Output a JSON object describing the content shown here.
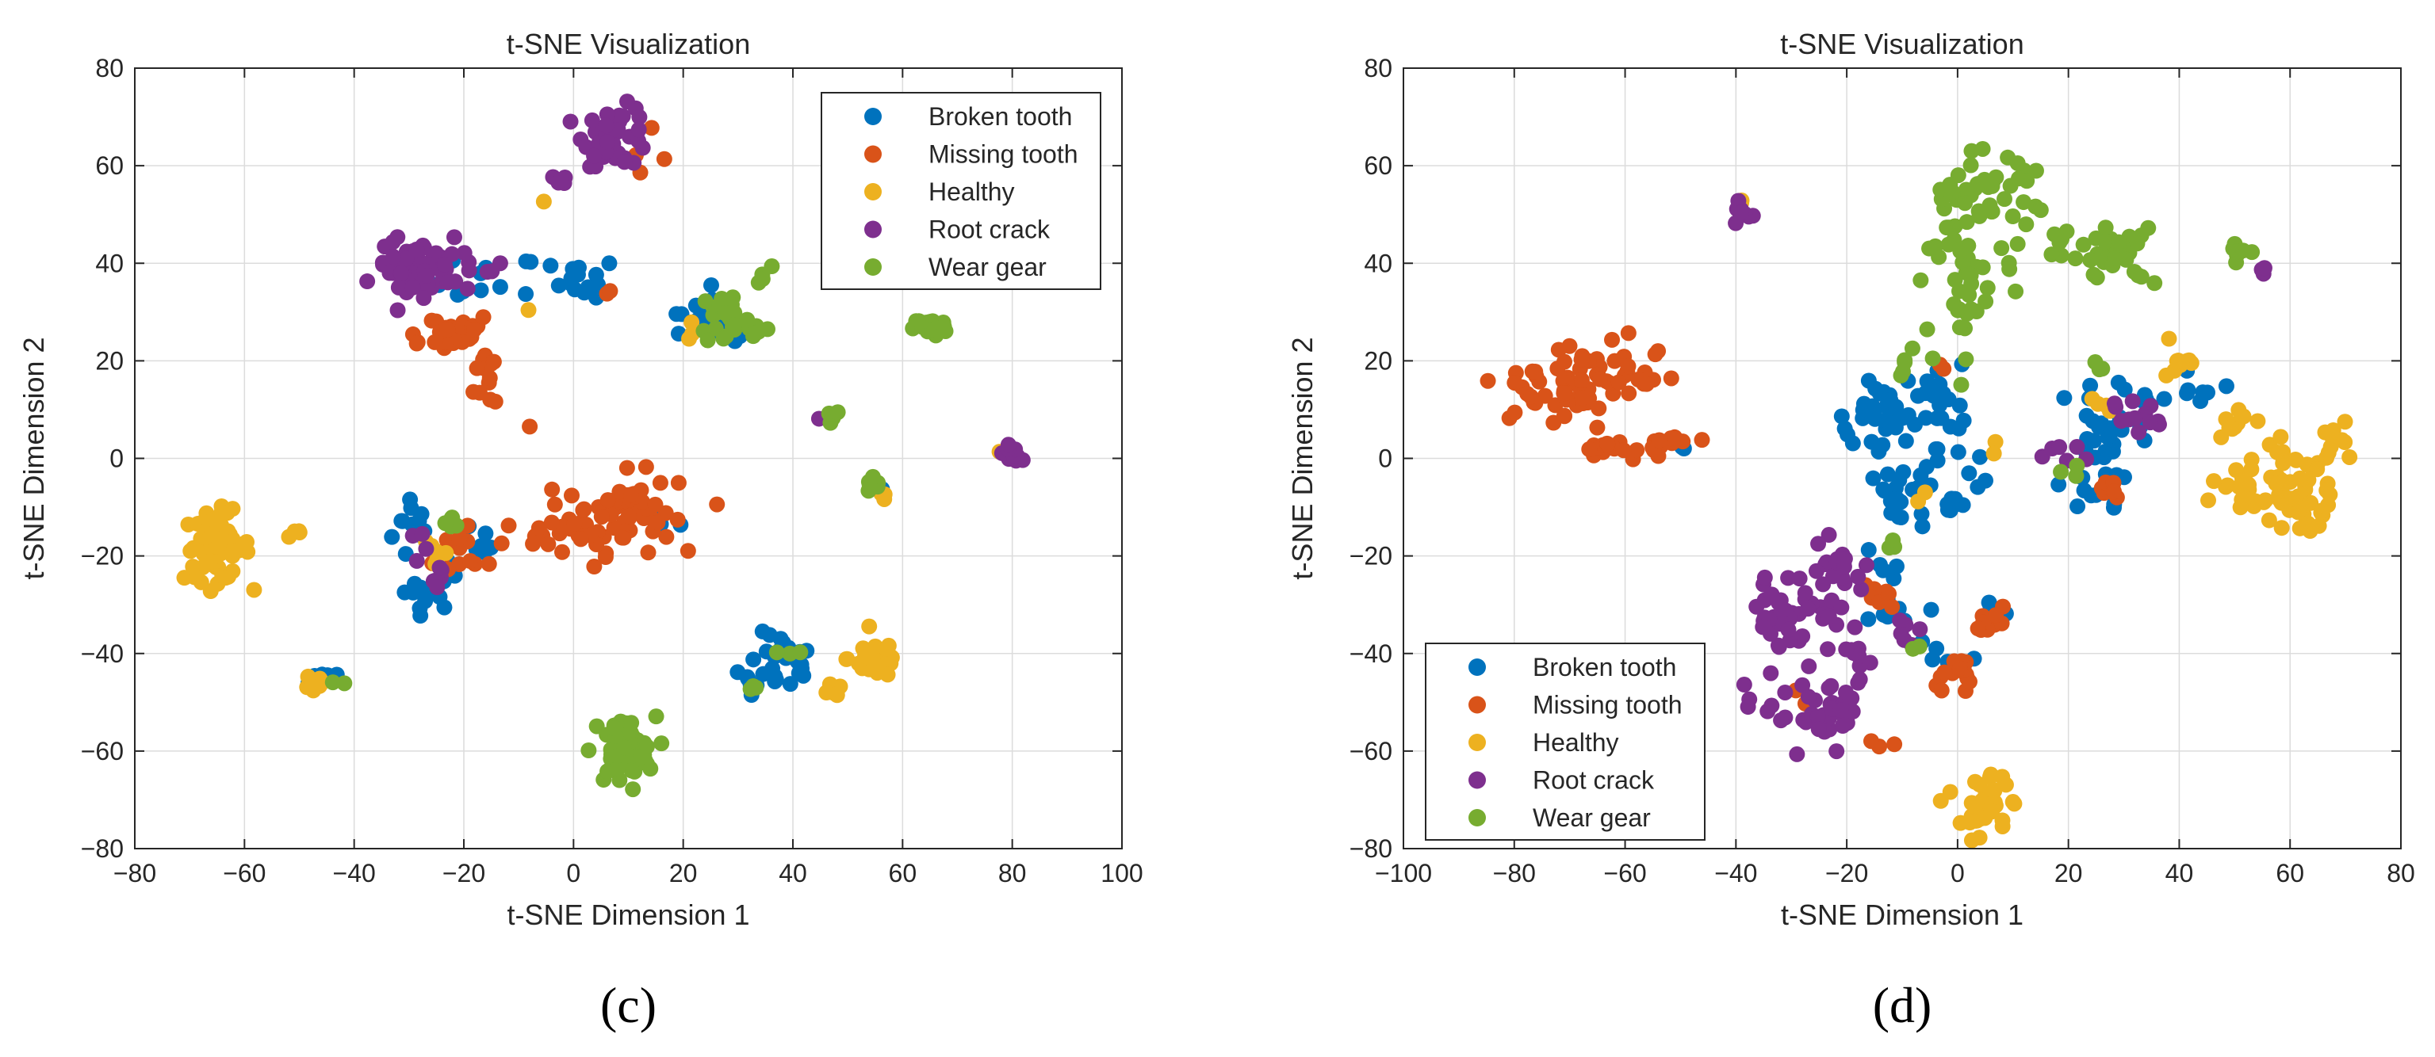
{
  "colors": {
    "broken_tooth": "#0072BD",
    "missing_tooth": "#D95319",
    "healthy": "#EDB120",
    "root_crack": "#7E2F8E",
    "wear_gear": "#77AC30",
    "grid": "#dcdcdc",
    "axis": "#262626"
  },
  "chart_data": [
    {
      "id": "c",
      "type": "scatter",
      "caption": "(c)",
      "title": "t-SNE Visualization",
      "xlabel": "t-SNE Dimension 1",
      "ylabel": "t-SNE Dimension 2",
      "xlim": [
        -80,
        100
      ],
      "ylim": [
        -80,
        80
      ],
      "xticks": [
        -80,
        -60,
        -40,
        -20,
        0,
        20,
        40,
        60,
        80,
        100
      ],
      "yticks": [
        -80,
        -60,
        -40,
        -20,
        0,
        20,
        40,
        60,
        80
      ],
      "grid": true,
      "legend_position": "top-right",
      "series": [
        {
          "name": "Broken tooth",
          "color_key": "broken_tooth",
          "clusters": [
            {
              "cx": -29,
              "cy": -14,
              "sx": 2,
              "sy": 4,
              "n": 12
            },
            {
              "cx": -27,
              "cy": -27,
              "sx": 3,
              "sy": 2,
              "n": 12
            },
            {
              "cx": -18,
              "cy": -20,
              "sx": 3,
              "sy": 3,
              "n": 10
            },
            {
              "cx": -16,
              "cy": 36,
              "sx": 5,
              "sy": 3,
              "n": 12
            },
            {
              "cx": 2,
              "cy": 37,
              "sx": 3,
              "sy": 2,
              "n": 14
            },
            {
              "cx": 22,
              "cy": 28,
              "sx": 3,
              "sy": 2,
              "n": 10
            },
            {
              "cx": 27,
              "cy": 28,
              "sx": 3,
              "sy": 3,
              "n": 12
            },
            {
              "cx": 38,
              "cy": -42,
              "sx": 3,
              "sy": 3,
              "n": 25
            },
            {
              "cx": 33,
              "cy": -46,
              "sx": 2,
              "sy": 2,
              "n": 6
            },
            {
              "cx": -46,
              "cy": -44,
              "sx": 1.5,
              "sy": 1.5,
              "n": 5
            },
            {
              "cx": 55,
              "cy": -6,
              "sx": 1,
              "sy": 1,
              "n": 3
            },
            {
              "cx": 18,
              "cy": -14,
              "sx": 1.5,
              "sy": 2,
              "n": 3
            }
          ]
        },
        {
          "name": "Missing tooth",
          "color_key": "missing_tooth",
          "clusters": [
            {
              "cx": -24,
              "cy": 26,
              "sx": 5,
              "sy": 2,
              "n": 26
            },
            {
              "cx": -15,
              "cy": 17,
              "sx": 1.5,
              "sy": 4,
              "n": 12
            },
            {
              "cx": 10,
              "cy": -11,
              "sx": 4,
              "sy": 4,
              "n": 40
            },
            {
              "cx": 2,
              "cy": -13,
              "sx": 3,
              "sy": 3,
              "n": 14
            },
            {
              "cx": -7,
              "cy": -16,
              "sx": 3,
              "sy": 2,
              "n": 10
            },
            {
              "cx": -20,
              "cy": -19,
              "sx": 4,
              "sy": 3,
              "n": 16
            },
            {
              "cx": 14,
              "cy": 65,
              "sx": 3,
              "sy": 3,
              "n": 5
            },
            {
              "cx": -8,
              "cy": 7,
              "sx": 0.5,
              "sy": 0.5,
              "n": 1
            },
            {
              "cx": 5,
              "cy": 34,
              "sx": 1,
              "sy": 1,
              "n": 2
            },
            {
              "cx": 12,
              "cy": -12,
              "sx": 8,
              "sy": 3,
              "n": 14
            }
          ]
        },
        {
          "name": "Healthy",
          "color_key": "healthy",
          "clusters": [
            {
              "cx": -65,
              "cy": -18,
              "sx": 3,
              "sy": 3.5,
              "n": 70
            },
            {
              "cx": -51,
              "cy": -16,
              "sx": 1,
              "sy": 1,
              "n": 4
            },
            {
              "cx": -47,
              "cy": -46,
              "sx": 1,
              "sy": 1.5,
              "n": 10
            },
            {
              "cx": 55,
              "cy": -41,
              "sx": 2.5,
              "sy": 2,
              "n": 32
            },
            {
              "cx": 47,
              "cy": -48,
              "sx": 1,
              "sy": 0.8,
              "n": 7
            },
            {
              "cx": -25,
              "cy": -20,
              "sx": 2,
              "sy": 2,
              "n": 6
            },
            {
              "cx": -6,
              "cy": 52,
              "sx": 0.5,
              "sy": 0.5,
              "n": 1
            },
            {
              "cx": -9,
              "cy": 30,
              "sx": 0.5,
              "sy": 0.5,
              "n": 1
            },
            {
              "cx": 78,
              "cy": 1,
              "sx": 0.5,
              "sy": 0.5,
              "n": 1
            },
            {
              "cx": 56,
              "cy": -8,
              "sx": 1,
              "sy": 1,
              "n": 3
            },
            {
              "cx": 22,
              "cy": 26,
              "sx": 1,
              "sy": 1,
              "n": 3
            }
          ]
        },
        {
          "name": "Root crack",
          "color_key": "root_crack",
          "clusters": [
            {
              "cx": -31,
              "cy": 39,
              "sx": 2.5,
              "sy": 3,
              "n": 30
            },
            {
              "cx": -23,
              "cy": 38,
              "sx": 4,
              "sy": 3,
              "n": 30
            },
            {
              "cx": 8,
              "cy": 66,
              "sx": 3,
              "sy": 3,
              "n": 45
            },
            {
              "cx": -3,
              "cy": 57,
              "sx": 1,
              "sy": 1,
              "n": 6
            },
            {
              "cx": -25,
              "cy": -24,
              "sx": 2,
              "sy": 1,
              "n": 6
            },
            {
              "cx": -28,
              "cy": -17,
              "sx": 1,
              "sy": 1,
              "n": 4
            },
            {
              "cx": 80,
              "cy": 1,
              "sx": 0.8,
              "sy": 0.8,
              "n": 14
            },
            {
              "cx": 45,
              "cy": 8,
              "sx": 0.5,
              "sy": 0.5,
              "n": 2
            },
            {
              "cx": -15,
              "cy": 38,
              "sx": 1,
              "sy": 1,
              "n": 2
            }
          ]
        },
        {
          "name": "Wear gear",
          "color_key": "wear_gear",
          "clusters": [
            {
              "cx": 9,
              "cy": -60,
              "sx": 3,
              "sy": 3.5,
              "n": 55
            },
            {
              "cx": 65,
              "cy": 27,
              "sx": 1.5,
              "sy": 1,
              "n": 28
            },
            {
              "cx": 28,
              "cy": 29,
              "sx": 2.5,
              "sy": 3,
              "n": 25
            },
            {
              "cx": 33,
              "cy": 27,
              "sx": 1.5,
              "sy": 1.5,
              "n": 6
            },
            {
              "cx": 35,
              "cy": 38,
              "sx": 1,
              "sy": 1.5,
              "n": 4
            },
            {
              "cx": 47,
              "cy": 9,
              "sx": 0.8,
              "sy": 0.6,
              "n": 6
            },
            {
              "cx": 55,
              "cy": -5,
              "sx": 1,
              "sy": 1,
              "n": 6
            },
            {
              "cx": -22,
              "cy": -14,
              "sx": 1.5,
              "sy": 1,
              "n": 6
            },
            {
              "cx": -42,
              "cy": -46,
              "sx": 1,
              "sy": 1,
              "n": 2
            },
            {
              "cx": 32,
              "cy": -47,
              "sx": 1,
              "sy": 0.5,
              "n": 3
            },
            {
              "cx": 40,
              "cy": -40,
              "sx": 1,
              "sy": 1,
              "n": 3
            }
          ]
        }
      ]
    },
    {
      "id": "d",
      "type": "scatter",
      "caption": "(d)",
      "title": "t-SNE Visualization",
      "xlabel": "t-SNE Dimension 1",
      "ylabel": "t-SNE Dimension 2",
      "xlim": [
        -100,
        80
      ],
      "ylim": [
        -80,
        80
      ],
      "xticks": [
        -100,
        -80,
        -60,
        -40,
        -20,
        0,
        20,
        40,
        60,
        80
      ],
      "yticks": [
        -80,
        -60,
        -40,
        -20,
        0,
        20,
        40,
        60,
        80
      ],
      "grid": true,
      "legend_position": "bottom-left",
      "series": [
        {
          "name": "Broken tooth",
          "color_key": "broken_tooth",
          "clusters": [
            {
              "cx": -12,
              "cy": 8,
              "sx": 4,
              "sy": 5,
              "n": 35
            },
            {
              "cx": -2,
              "cy": 10,
              "sx": 3,
              "sy": 5,
              "n": 20
            },
            {
              "cx": -10,
              "cy": -8,
              "sx": 3,
              "sy": 3,
              "n": 20
            },
            {
              "cx": 0,
              "cy": -5,
              "sx": 3,
              "sy": 3,
              "n": 12
            },
            {
              "cx": 27,
              "cy": 4,
              "sx": 4,
              "sy": 5,
              "n": 30
            },
            {
              "cx": 37,
              "cy": 13,
              "sx": 3,
              "sy": 2,
              "n": 10
            },
            {
              "cx": -12,
              "cy": -30,
              "sx": 3,
              "sy": 5,
              "n": 12
            },
            {
              "cx": -3,
              "cy": -38,
              "sx": 3,
              "sy": 2,
              "n": 6
            },
            {
              "cx": 6,
              "cy": -31,
              "sx": 2,
              "sy": 2,
              "n": 4
            },
            {
              "cx": 26,
              "cy": -8,
              "sx": 3,
              "sy": 2,
              "n": 8
            },
            {
              "cx": -50,
              "cy": 2,
              "sx": 1,
              "sy": 0.5,
              "n": 2
            },
            {
              "cx": 44,
              "cy": 13,
              "sx": 1,
              "sy": 1,
              "n": 3
            }
          ]
        },
        {
          "name": "Missing tooth",
          "color_key": "missing_tooth",
          "clusters": [
            {
              "cx": -72,
              "cy": 14,
              "sx": 5,
              "sy": 4,
              "n": 50
            },
            {
              "cx": -60,
              "cy": 19,
              "sx": 4,
              "sy": 4,
              "n": 25
            },
            {
              "cx": -62,
              "cy": 2,
              "sx": 5,
              "sy": 1.2,
              "n": 18
            },
            {
              "cx": -53,
              "cy": 3,
              "sx": 3,
              "sy": 1,
              "n": 6
            },
            {
              "cx": 0,
              "cy": -44,
              "sx": 2,
              "sy": 3,
              "n": 15
            },
            {
              "cx": 7,
              "cy": -33,
              "sx": 2,
              "sy": 2,
              "n": 10
            },
            {
              "cx": -14,
              "cy": -28,
              "sx": 2,
              "sy": 3,
              "n": 8
            },
            {
              "cx": 28,
              "cy": -8,
              "sx": 2,
              "sy": 3,
              "n": 6
            },
            {
              "cx": -14,
              "cy": -59,
              "sx": 2,
              "sy": 0.5,
              "n": 3
            },
            {
              "cx": -4,
              "cy": 19,
              "sx": 1,
              "sy": 0.5,
              "n": 2
            },
            {
              "cx": -27,
              "cy": -48,
              "sx": 1,
              "sy": 1,
              "n": 2
            }
          ]
        },
        {
          "name": "Healthy",
          "color_key": "healthy",
          "clusters": [
            {
              "cx": 57,
              "cy": -5,
              "sx": 5,
              "sy": 4,
              "n": 55
            },
            {
              "cx": 63,
              "cy": -13,
              "sx": 3,
              "sy": 3,
              "n": 15
            },
            {
              "cx": 68,
              "cy": 3,
              "sx": 2,
              "sy": 2.5,
              "n": 10
            },
            {
              "cx": 49,
              "cy": 7,
              "sx": 2,
              "sy": 2,
              "n": 10
            },
            {
              "cx": 40,
              "cy": 20,
              "sx": 2,
              "sy": 2,
              "n": 10
            },
            {
              "cx": 5,
              "cy": -71,
              "sx": 2,
              "sy": 3,
              "n": 35
            },
            {
              "cx": -38,
              "cy": 52,
              "sx": 0.5,
              "sy": 1,
              "n": 2
            },
            {
              "cx": 26,
              "cy": 10,
              "sx": 1,
              "sy": 1,
              "n": 4
            },
            {
              "cx": 6,
              "cy": 2,
              "sx": 1,
              "sy": 1,
              "n": 2
            },
            {
              "cx": -7,
              "cy": -8,
              "sx": 1,
              "sy": 1,
              "n": 2
            },
            {
              "cx": -3,
              "cy": -69,
              "sx": 1,
              "sy": 1,
              "n": 2
            }
          ]
        },
        {
          "name": "Root crack",
          "color_key": "root_crack",
          "clusters": [
            {
              "cx": -29,
              "cy": -32,
              "sx": 4,
              "sy": 4,
              "n": 45
            },
            {
              "cx": -21,
              "cy": -22,
              "sx": 3,
              "sy": 3,
              "n": 20
            },
            {
              "cx": -25,
              "cy": -53,
              "sx": 4,
              "sy": 3,
              "n": 35
            },
            {
              "cx": -18,
              "cy": -42,
              "sx": 2,
              "sy": 4,
              "n": 12
            },
            {
              "cx": -39,
              "cy": 50,
              "sx": 1,
              "sy": 1,
              "n": 10
            },
            {
              "cx": 19,
              "cy": 1,
              "sx": 2,
              "sy": 1,
              "n": 6
            },
            {
              "cx": 31,
              "cy": 8,
              "sx": 3,
              "sy": 2,
              "n": 12
            },
            {
              "cx": 55,
              "cy": 38,
              "sx": 0.5,
              "sy": 1,
              "n": 3
            },
            {
              "cx": -38,
              "cy": -49,
              "sx": 0.5,
              "sy": 1,
              "n": 3
            },
            {
              "cx": -9,
              "cy": -37,
              "sx": 1.5,
              "sy": 2,
              "n": 6
            }
          ]
        },
        {
          "name": "Wear gear",
          "color_key": "wear_gear",
          "clusters": [
            {
              "cx": 4,
              "cy": 53,
              "sx": 5,
              "sy": 5,
              "n": 50
            },
            {
              "cx": 2,
              "cy": 35,
              "sx": 4,
              "sy": 6,
              "n": 35
            },
            {
              "cx": 28,
              "cy": 42,
              "sx": 4,
              "sy": 3,
              "n": 30
            },
            {
              "cx": 51,
              "cy": 42,
              "sx": 1,
              "sy": 1,
              "n": 8
            },
            {
              "cx": -9,
              "cy": 19,
              "sx": 1.5,
              "sy": 2,
              "n": 5
            },
            {
              "cx": 17,
              "cy": 45,
              "sx": 2,
              "sy": 4,
              "n": 6
            },
            {
              "cx": 21,
              "cy": -1,
              "sx": 1,
              "sy": 1,
              "n": 3
            },
            {
              "cx": 25,
              "cy": 20,
              "sx": 1,
              "sy": 1,
              "n": 3
            },
            {
              "cx": -12,
              "cy": -17,
              "sx": 1,
              "sy": 1,
              "n": 3
            },
            {
              "cx": -7,
              "cy": -38,
              "sx": 1,
              "sy": 1,
              "n": 2
            }
          ]
        }
      ]
    }
  ]
}
